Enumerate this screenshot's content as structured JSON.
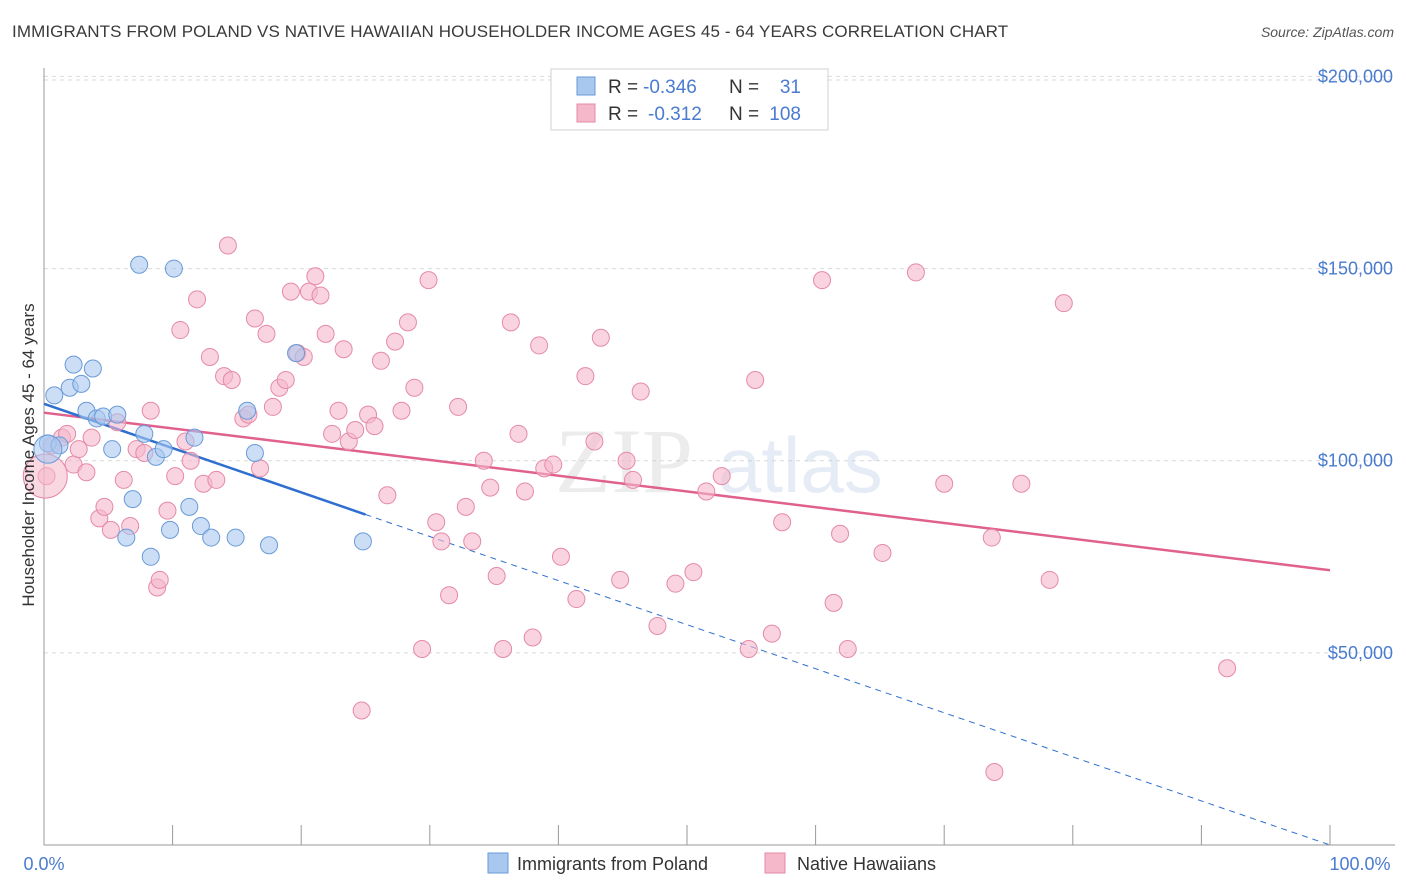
{
  "title": "IMMIGRANTS FROM POLAND VS NATIVE HAWAIIAN HOUSEHOLDER INCOME AGES 45 - 64 YEARS CORRELATION CHART",
  "source": "Source: ZipAtlas.com",
  "watermark": {
    "zip": "ZIP",
    "atlas": "atlas"
  },
  "legend": {
    "r_label": "R =",
    "n_label": "N =",
    "rows": [
      {
        "r": "-0.346",
        "n": "31",
        "color": "#a8c8f0"
      },
      {
        "r": "-0.312",
        "n": "108",
        "color": "#f5b8cb"
      }
    ]
  },
  "chart_data": {
    "type": "scatter",
    "title": "IMMIGRANTS FROM POLAND VS NATIVE HAWAIIAN HOUSEHOLDER INCOME AGES 45 - 64 YEARS CORRELATION CHART",
    "xlabel": "",
    "ylabel": "Householder Income Ages 45 - 64 years",
    "xlim": [
      0,
      100
    ],
    "ylim": [
      0,
      210000
    ],
    "x_tick_labels": [
      "0.0%",
      "100.0%"
    ],
    "y_ticks": [
      50000,
      100000,
      150000,
      200000
    ],
    "y_tick_labels": [
      "$50,000",
      "$100,000",
      "$150,000",
      "$200,000"
    ],
    "grid": true,
    "legend_position": "top-center",
    "series": [
      {
        "name": "Immigrants from Poland",
        "color": "#a8c8f0",
        "stroke": "#6a9ad8",
        "trend": {
          "x": [
            0,
            25
          ],
          "y": [
            114800,
            86000
          ],
          "dashed_extension_to": [
            100,
            0
          ]
        },
        "points": [
          [
            0.3,
            104500
          ],
          [
            0.8,
            117000
          ],
          [
            1.2,
            104000
          ],
          [
            2.0,
            119000
          ],
          [
            2.3,
            125000
          ],
          [
            2.9,
            120000
          ],
          [
            3.3,
            113000
          ],
          [
            3.8,
            124000
          ],
          [
            4.1,
            111000
          ],
          [
            4.6,
            111500
          ],
          [
            5.3,
            103000
          ],
          [
            5.7,
            112000
          ],
          [
            6.4,
            80000
          ],
          [
            6.9,
            90000
          ],
          [
            7.4,
            151000
          ],
          [
            7.8,
            107000
          ],
          [
            8.3,
            75000
          ],
          [
            8.7,
            101000
          ],
          [
            9.3,
            103000
          ],
          [
            9.8,
            82000
          ],
          [
            10.1,
            150000
          ],
          [
            11.3,
            88000
          ],
          [
            11.7,
            106000
          ],
          [
            12.2,
            83000
          ],
          [
            13.0,
            80000
          ],
          [
            14.9,
            80000
          ],
          [
            15.8,
            113000
          ],
          [
            16.4,
            102000
          ],
          [
            17.5,
            78000
          ],
          [
            19.6,
            128000
          ],
          [
            24.8,
            79000
          ]
        ]
      },
      {
        "name": "Native Hawaiians",
        "color": "#f5b8cb",
        "stroke": "#e58aa6",
        "trend": {
          "x": [
            0,
            100
          ],
          "y": [
            112500,
            71500
          ]
        },
        "points": [
          [
            0.2,
            96000
          ],
          [
            0.6,
            104000
          ],
          [
            1.4,
            106000
          ],
          [
            1.8,
            107000
          ],
          [
            2.3,
            99000
          ],
          [
            2.7,
            103000
          ],
          [
            3.3,
            97000
          ],
          [
            3.7,
            106000
          ],
          [
            4.3,
            85000
          ],
          [
            4.7,
            88000
          ],
          [
            5.2,
            82000
          ],
          [
            5.7,
            110000
          ],
          [
            6.2,
            95000
          ],
          [
            6.7,
            83000
          ],
          [
            7.2,
            103000
          ],
          [
            7.8,
            102000
          ],
          [
            8.3,
            113000
          ],
          [
            8.8,
            67000
          ],
          [
            9.0,
            69000
          ],
          [
            9.6,
            87000
          ],
          [
            10.2,
            96000
          ],
          [
            10.6,
            134000
          ],
          [
            11.0,
            105000
          ],
          [
            11.4,
            100000
          ],
          [
            11.9,
            142000
          ],
          [
            12.4,
            94000
          ],
          [
            12.9,
            127000
          ],
          [
            13.4,
            95000
          ],
          [
            14.0,
            122000
          ],
          [
            14.6,
            121000
          ],
          [
            14.3,
            156000
          ],
          [
            15.5,
            111000
          ],
          [
            15.9,
            112000
          ],
          [
            16.4,
            137000
          ],
          [
            16.8,
            98000
          ],
          [
            17.3,
            133000
          ],
          [
            17.8,
            114000
          ],
          [
            18.3,
            119000
          ],
          [
            18.8,
            121000
          ],
          [
            19.2,
            144000
          ],
          [
            19.7,
            128000
          ],
          [
            20.2,
            127000
          ],
          [
            20.6,
            144000
          ],
          [
            21.1,
            148000
          ],
          [
            21.5,
            143000
          ],
          [
            21.9,
            133000
          ],
          [
            22.4,
            107000
          ],
          [
            22.9,
            113000
          ],
          [
            23.3,
            129000
          ],
          [
            23.7,
            105000
          ],
          [
            24.2,
            108000
          ],
          [
            24.7,
            35000
          ],
          [
            25.2,
            112000
          ],
          [
            25.7,
            109000
          ],
          [
            26.2,
            126000
          ],
          [
            26.7,
            91000
          ],
          [
            27.3,
            131000
          ],
          [
            27.8,
            113000
          ],
          [
            28.3,
            136000
          ],
          [
            28.8,
            119000
          ],
          [
            29.4,
            51000
          ],
          [
            29.9,
            147000
          ],
          [
            30.5,
            84000
          ],
          [
            30.9,
            79000
          ],
          [
            31.5,
            65000
          ],
          [
            32.2,
            114000
          ],
          [
            32.8,
            88000
          ],
          [
            33.3,
            79000
          ],
          [
            34.2,
            100000
          ],
          [
            34.7,
            93000
          ],
          [
            35.2,
            70000
          ],
          [
            35.7,
            51000
          ],
          [
            36.3,
            136000
          ],
          [
            36.9,
            107000
          ],
          [
            37.4,
            92000
          ],
          [
            38.0,
            54000
          ],
          [
            38.5,
            130000
          ],
          [
            38.9,
            98000
          ],
          [
            39.6,
            99000
          ],
          [
            40.2,
            75000
          ],
          [
            41.4,
            64000
          ],
          [
            42.1,
            122000
          ],
          [
            42.8,
            105000
          ],
          [
            43.3,
            132000
          ],
          [
            44.8,
            69000
          ],
          [
            45.3,
            100000
          ],
          [
            45.8,
            95000
          ],
          [
            46.4,
            118000
          ],
          [
            47.7,
            57000
          ],
          [
            49.1,
            68000
          ],
          [
            50.5,
            71000
          ],
          [
            51.5,
            92000
          ],
          [
            52.7,
            96000
          ],
          [
            54.8,
            51000
          ],
          [
            55.3,
            121000
          ],
          [
            56.6,
            55000
          ],
          [
            57.4,
            84000
          ],
          [
            60.5,
            147000
          ],
          [
            61.4,
            63000
          ],
          [
            61.9,
            81000
          ],
          [
            62.5,
            51000
          ],
          [
            65.2,
            76000
          ],
          [
            67.8,
            149000
          ],
          [
            70.0,
            94000
          ],
          [
            73.7,
            80000
          ],
          [
            73.9,
            19000
          ],
          [
            76.0,
            94000
          ],
          [
            78.2,
            69000
          ],
          [
            79.3,
            141000
          ],
          [
            92.0,
            46000
          ]
        ]
      }
    ]
  },
  "bottom_legend": [
    "Immigrants from Poland",
    "Native Hawaiians"
  ]
}
